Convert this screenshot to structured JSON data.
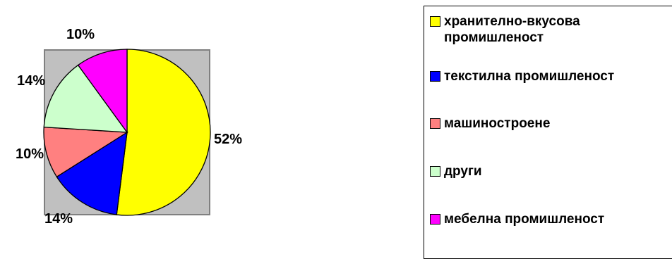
{
  "chart_data": {
    "type": "pie",
    "slices": [
      {
        "label": "хранително-вкусова промишленост",
        "value": 52,
        "value_label": "52%",
        "color": "#ffff00"
      },
      {
        "label": "текстилна промишленост",
        "value": 14,
        "value_label": "14%",
        "color": "#0000ff"
      },
      {
        "label": "машиностроене",
        "value": 10,
        "value_label": "10%",
        "color": "#ff8080"
      },
      {
        "label": "други",
        "value": 14,
        "value_label": "14%",
        "color": "#ccffcc"
      },
      {
        "label": "мебелна промишленост",
        "value": 10,
        "value_label": "10%",
        "color": "#ff00ff"
      }
    ],
    "plot_background": "#c0c0c0",
    "legend_position": "right",
    "start": "top, clockwise"
  }
}
